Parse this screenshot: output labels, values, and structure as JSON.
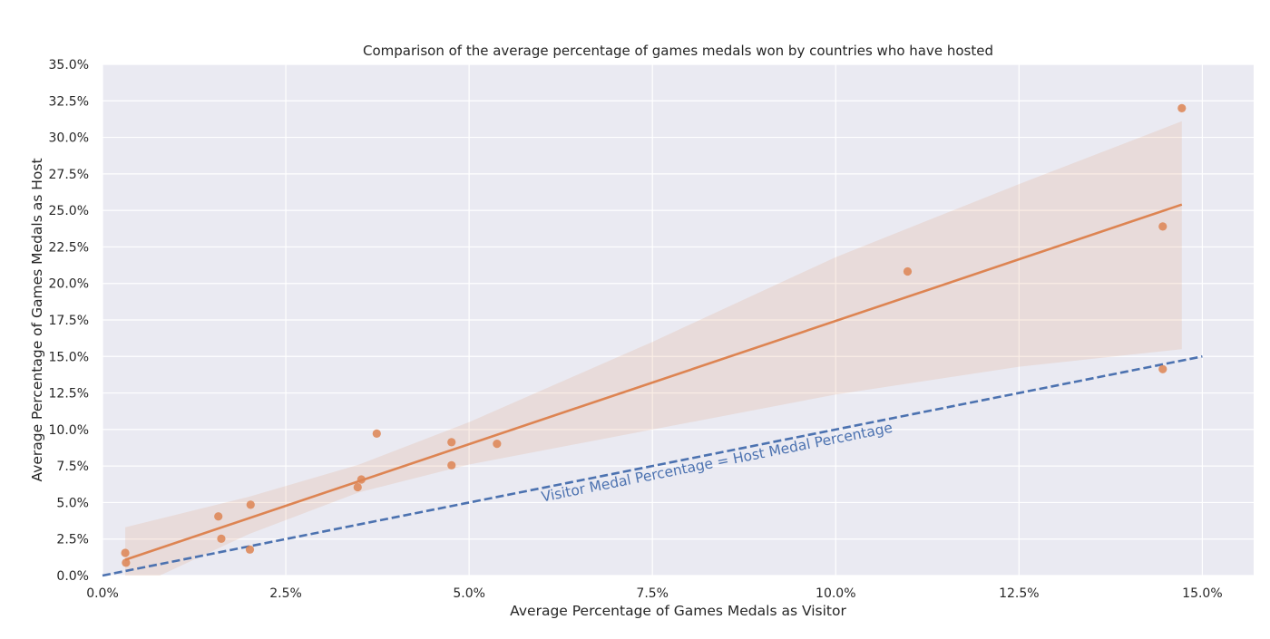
{
  "chart_data": {
    "type": "scatter",
    "title": "Comparison of the average percentage of games medals won by countries who have hosted",
    "xlabel": "Average Percentage of Games Medals as Visitor",
    "ylabel": "Average Percentage of Games Medals as Host",
    "xlim": [
      0,
      0.157
    ],
    "ylim": [
      0,
      0.35
    ],
    "grid": true,
    "xticks": [
      {
        "value": 0.0,
        "label": "0.0%"
      },
      {
        "value": 0.025,
        "label": "2.5%"
      },
      {
        "value": 0.05,
        "label": "5.0%"
      },
      {
        "value": 0.075,
        "label": "7.5%"
      },
      {
        "value": 0.1,
        "label": "10.0%"
      },
      {
        "value": 0.125,
        "label": "12.5%"
      },
      {
        "value": 0.15,
        "label": "15.0%"
      }
    ],
    "yticks": [
      {
        "value": 0.0,
        "label": "0.0%"
      },
      {
        "value": 0.025,
        "label": "2.5%"
      },
      {
        "value": 0.05,
        "label": "5.0%"
      },
      {
        "value": 0.075,
        "label": "7.5%"
      },
      {
        "value": 0.1,
        "label": "10.0%"
      },
      {
        "value": 0.125,
        "label": "12.5%"
      },
      {
        "value": 0.15,
        "label": "15.0%"
      },
      {
        "value": 0.175,
        "label": "17.5%"
      },
      {
        "value": 0.2,
        "label": "20.0%"
      },
      {
        "value": 0.225,
        "label": "22.5%"
      },
      {
        "value": 0.25,
        "label": "25.0%"
      },
      {
        "value": 0.275,
        "label": "27.5%"
      },
      {
        "value": 0.3,
        "label": "30.0%"
      },
      {
        "value": 0.325,
        "label": "32.5%"
      },
      {
        "value": 0.35,
        "label": "35.0%"
      }
    ],
    "points": [
      {
        "x": 0.0031,
        "y": 0.0155
      },
      {
        "x": 0.0032,
        "y": 0.0088
      },
      {
        "x": 0.0158,
        "y": 0.0405
      },
      {
        "x": 0.0162,
        "y": 0.0252
      },
      {
        "x": 0.0201,
        "y": 0.0178
      },
      {
        "x": 0.0202,
        "y": 0.0485
      },
      {
        "x": 0.0348,
        "y": 0.0605
      },
      {
        "x": 0.0353,
        "y": 0.0658
      },
      {
        "x": 0.0374,
        "y": 0.0972
      },
      {
        "x": 0.0476,
        "y": 0.0913
      },
      {
        "x": 0.0476,
        "y": 0.0755
      },
      {
        "x": 0.0538,
        "y": 0.0902
      },
      {
        "x": 0.1098,
        "y": 0.2082
      },
      {
        "x": 0.1446,
        "y": 0.239
      },
      {
        "x": 0.1446,
        "y": 0.1413
      },
      {
        "x": 0.1472,
        "y": 0.32
      }
    ],
    "regression": {
      "x": [
        0.0031,
        0.1472
      ],
      "y": [
        0.0108,
        0.254
      ],
      "color": "#dd8452",
      "ci_band": [
        {
          "x": 0.0031,
          "lo": -0.011,
          "hi": 0.033
        },
        {
          "x": 0.02,
          "lo": 0.0285,
          "hi": 0.054
        },
        {
          "x": 0.035,
          "lo": 0.057,
          "hi": 0.076
        },
        {
          "x": 0.05,
          "lo": 0.076,
          "hi": 0.105
        },
        {
          "x": 0.075,
          "lo": 0.1,
          "hi": 0.16
        },
        {
          "x": 0.1,
          "lo": 0.124,
          "hi": 0.218
        },
        {
          "x": 0.125,
          "lo": 0.143,
          "hi": 0.268
        },
        {
          "x": 0.1472,
          "lo": 0.155,
          "hi": 0.311
        }
      ]
    },
    "reference_line": {
      "x": [
        0,
        0.15
      ],
      "y": [
        0,
        0.15
      ],
      "style": "dashed",
      "color": "#4c72b0",
      "label": "Visitor Medal Percentage = Host Medal Percentage",
      "label_at": {
        "x": 0.06,
        "y": 0.0505
      }
    },
    "colors": {
      "background": "#eaeaf2",
      "grid": "#ffffff",
      "points": "#dd8452",
      "band": "#dd8452"
    }
  }
}
